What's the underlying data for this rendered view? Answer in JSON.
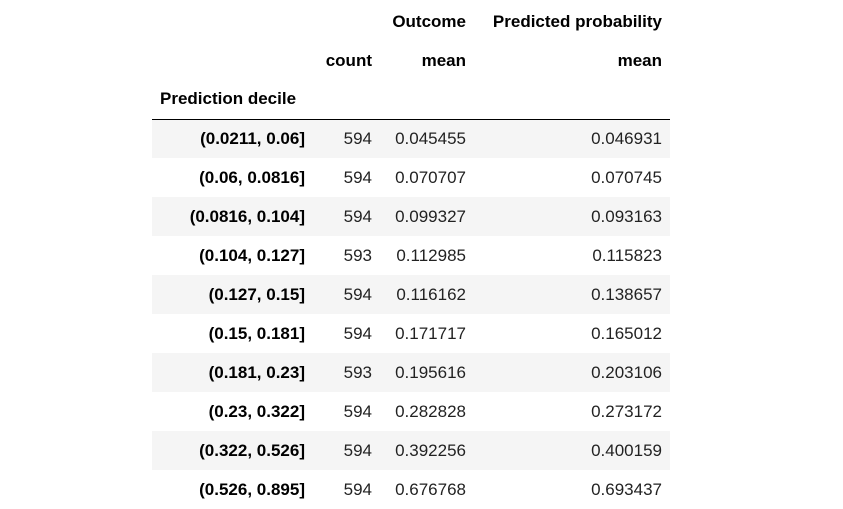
{
  "table": {
    "header_row1": [
      "",
      "",
      "Outcome",
      "Predicted probability"
    ],
    "header_row2": [
      "",
      "count",
      "mean",
      "mean"
    ],
    "index_name": "Prediction decile",
    "rows": [
      {
        "index": "(0.0211, 0.06]",
        "count": "594",
        "outcome_mean": "0.045455",
        "pred_mean": "0.046931"
      },
      {
        "index": "(0.06, 0.0816]",
        "count": "594",
        "outcome_mean": "0.070707",
        "pred_mean": "0.070745"
      },
      {
        "index": "(0.0816, 0.104]",
        "count": "594",
        "outcome_mean": "0.099327",
        "pred_mean": "0.093163"
      },
      {
        "index": "(0.104, 0.127]",
        "count": "593",
        "outcome_mean": "0.112985",
        "pred_mean": "0.115823"
      },
      {
        "index": "(0.127, 0.15]",
        "count": "594",
        "outcome_mean": "0.116162",
        "pred_mean": "0.138657"
      },
      {
        "index": "(0.15, 0.181]",
        "count": "594",
        "outcome_mean": "0.171717",
        "pred_mean": "0.165012"
      },
      {
        "index": "(0.181, 0.23]",
        "count": "593",
        "outcome_mean": "0.195616",
        "pred_mean": "0.203106"
      },
      {
        "index": "(0.23, 0.322]",
        "count": "594",
        "outcome_mean": "0.282828",
        "pred_mean": "0.273172"
      },
      {
        "index": "(0.322, 0.526]",
        "count": "594",
        "outcome_mean": "0.392256",
        "pred_mean": "0.400159"
      },
      {
        "index": "(0.526, 0.895]",
        "count": "594",
        "outcome_mean": "0.676768",
        "pred_mean": "0.693437"
      }
    ]
  },
  "colors": {
    "stripe": "#f5f5f5",
    "border": "#000000"
  }
}
